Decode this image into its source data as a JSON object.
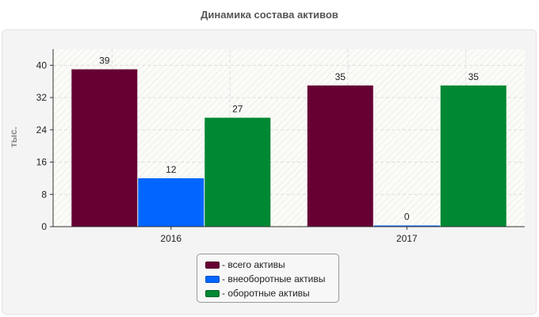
{
  "chart_data": {
    "type": "bar",
    "title": "Динамика состава активов",
    "ylabel": "тыс.",
    "xlabel": "",
    "categories": [
      "2016",
      "2017"
    ],
    "series": [
      {
        "name": "- всего активы",
        "values": [
          39,
          35
        ],
        "color": "#660033"
      },
      {
        "name": "- внеоборотные активы",
        "values": [
          12,
          0
        ],
        "color": "#0066ff"
      },
      {
        "name": "- оборотные активы",
        "values": [
          27,
          35
        ],
        "color": "#008833"
      }
    ],
    "ylim": [
      0,
      44
    ],
    "yticks": [
      "0",
      "8",
      "16",
      "24",
      "32",
      "40"
    ],
    "grid": true,
    "legend_position": "bottom"
  }
}
